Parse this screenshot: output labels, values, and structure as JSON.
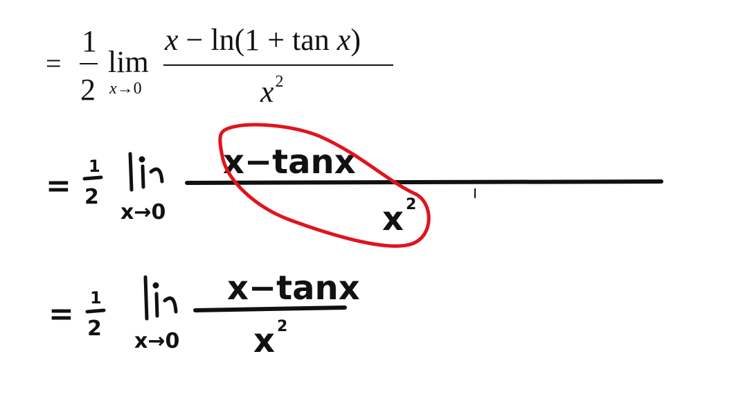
{
  "typeset_line": {
    "equals": "=",
    "half_num": "1",
    "half_den": "2",
    "lim": "lim",
    "lim_sub_var": "x",
    "lim_sub_arrow": "→",
    "lim_sub_target": "0",
    "numerator_var": "x",
    "numerator_rest": " − ln(1 + tan ",
    "numerator_var2": "x",
    "numerator_close": ")",
    "denominator": "x",
    "denominator_power": "2"
  },
  "handwritten_line_2": {
    "equals": "=",
    "half_num": "1",
    "half_den": "2",
    "lim": "lim",
    "lim_sub": "x→0",
    "numerator": "x−tanx",
    "denominator": "x",
    "denominator_power": "2"
  },
  "handwritten_line_3": {
    "equals": "=",
    "half_num": "1",
    "half_den": "2",
    "lim": "lim",
    "lim_sub": "x→0",
    "numerator": "x−tanx",
    "denominator": "x",
    "denominator_power": "2"
  },
  "colors": {
    "ink": "#111111",
    "annotation_red": "#e0141e",
    "background": "#ffffff"
  }
}
